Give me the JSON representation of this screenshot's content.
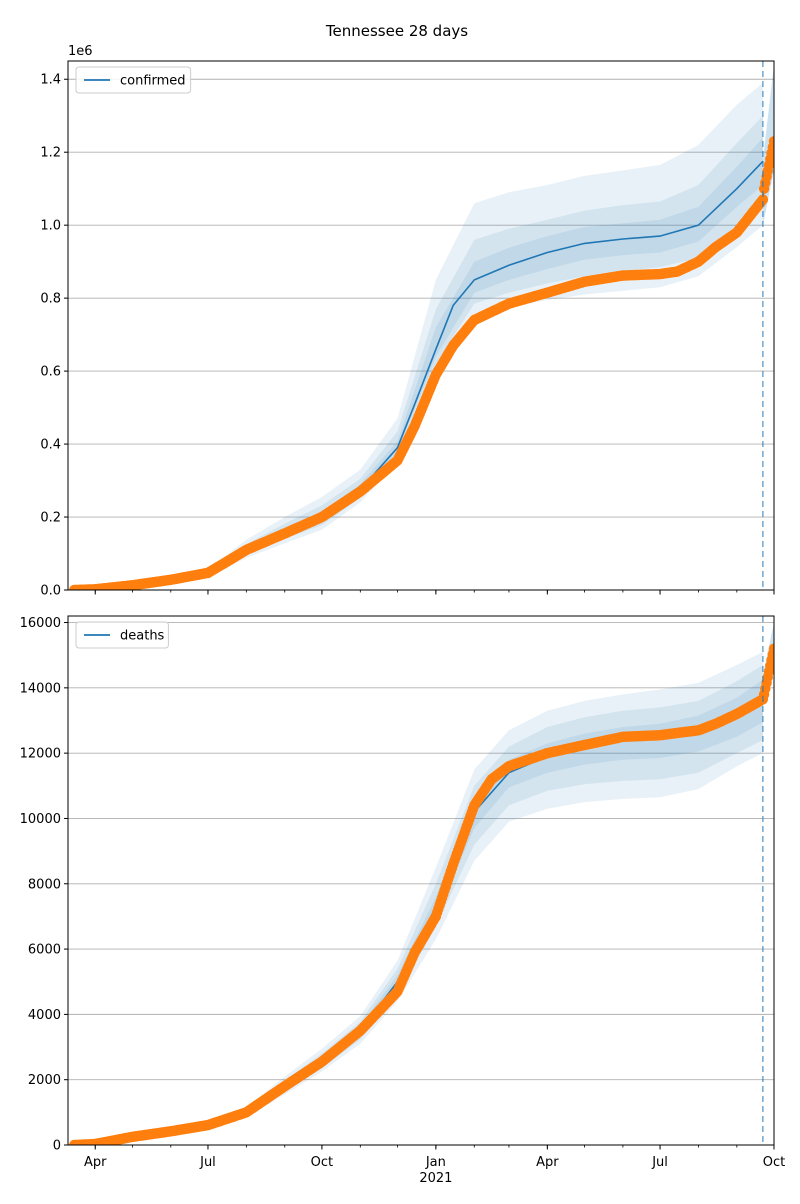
{
  "figure": {
    "title": "Tennessee 28 days"
  },
  "chart_data": [
    {
      "type": "line",
      "panel": "top",
      "ylim": [
        0,
        1450000
      ],
      "yticks": [
        0,
        200000,
        400000,
        600000,
        800000,
        1000000,
        1200000,
        1400000
      ],
      "ytick_labels": [
        "0.0",
        "0.2",
        "0.4",
        "0.6",
        "0.8",
        "1.0",
        "1.2",
        "1.4"
      ],
      "offset_label": "1e6",
      "grid": "horizontal",
      "legend": {
        "entries": [
          "confirmed"
        ],
        "placement": "upper-left"
      },
      "colors": {
        "model": "#1f77b4",
        "observed": "#ff7f0e",
        "band": "#1f77b4"
      },
      "model": {
        "name": "confirmed",
        "x": [
          "2020-03-15",
          "2020-05-01",
          "2020-06-01",
          "2020-07-01",
          "2020-08-01",
          "2020-09-01",
          "2020-10-01",
          "2020-11-01",
          "2020-12-01",
          "2020-12-15",
          "2021-01-01",
          "2021-01-15",
          "2021-02-01",
          "2021-03-01",
          "2021-04-01",
          "2021-05-01",
          "2021-06-01",
          "2021-07-01",
          "2021-08-01",
          "2021-09-01",
          "2021-09-22"
        ],
        "y": [
          0,
          10000,
          22000,
          45000,
          110000,
          160000,
          200000,
          275000,
          390000,
          510000,
          660000,
          780000,
          850000,
          890000,
          925000,
          950000,
          962000,
          970000,
          1000000,
          1100000,
          1175000
        ]
      },
      "bands": [
        {
          "x": [
            "2020-03-15",
            "2020-06-01",
            "2020-07-01",
            "2020-08-01",
            "2020-09-01",
            "2020-10-01",
            "2020-11-01",
            "2020-12-01",
            "2021-01-01",
            "2021-02-01",
            "2021-03-01",
            "2021-04-01",
            "2021-05-01",
            "2021-06-01",
            "2021-07-01",
            "2021-08-01",
            "2021-09-01",
            "2021-09-22"
          ],
          "lower": [
            0,
            20000,
            36000,
            88000,
            128000,
            165000,
            240000,
            355000,
            600000,
            750000,
            775000,
            795000,
            810000,
            820000,
            830000,
            860000,
            940000,
            1000000
          ],
          "upper": [
            0,
            24000,
            57000,
            138000,
            200000,
            255000,
            330000,
            470000,
            850000,
            1060000,
            1090000,
            1110000,
            1135000,
            1150000,
            1165000,
            1220000,
            1330000,
            1390000
          ]
        },
        {
          "x": [
            "2020-03-15",
            "2020-06-01",
            "2020-07-01",
            "2020-08-01",
            "2020-09-01",
            "2020-10-01",
            "2020-11-01",
            "2020-12-01",
            "2021-01-01",
            "2021-02-01",
            "2021-03-01",
            "2021-04-01",
            "2021-05-01",
            "2021-06-01",
            "2021-07-01",
            "2021-08-01",
            "2021-09-01",
            "2021-09-22"
          ],
          "lower": [
            0,
            21000,
            39000,
            96000,
            140000,
            178000,
            252000,
            370000,
            620000,
            785000,
            815000,
            840000,
            860000,
            875000,
            885000,
            910000,
            1000000,
            1060000
          ],
          "upper": [
            0,
            23000,
            52000,
            126000,
            182000,
            232000,
            305000,
            435000,
            770000,
            960000,
            990000,
            1015000,
            1040000,
            1055000,
            1065000,
            1110000,
            1225000,
            1300000
          ]
        },
        {
          "x": [
            "2020-03-15",
            "2020-06-01",
            "2020-07-01",
            "2020-08-01",
            "2020-09-01",
            "2020-10-01",
            "2020-11-01",
            "2020-12-01",
            "2021-01-01",
            "2021-02-01",
            "2021-03-01",
            "2021-04-01",
            "2021-05-01",
            "2021-06-01",
            "2021-07-01",
            "2021-08-01",
            "2021-09-01",
            "2021-09-22"
          ],
          "lower": [
            0,
            21500,
            41000,
            102000,
            150000,
            188000,
            262000,
            380000,
            640000,
            815000,
            850000,
            880000,
            905000,
            918000,
            925000,
            955000,
            1050000,
            1110000
          ],
          "upper": [
            0,
            22500,
            49000,
            118000,
            172000,
            214000,
            290000,
            408000,
            720000,
            900000,
            938000,
            970000,
            995000,
            1005000,
            1015000,
            1050000,
            1160000,
            1240000
          ]
        }
      ],
      "forecast": {
        "x": [
          "2021-09-22",
          "2021-10-01"
        ],
        "lower": [
          1000000,
          1150000
        ],
        "upper": [
          1180000,
          1440000
        ],
        "mid": [
          1080000,
          1200000
        ]
      },
      "observed": {
        "x": [
          "2020-03-15",
          "2020-04-01",
          "2020-05-01",
          "2020-06-01",
          "2020-07-01",
          "2020-07-15",
          "2020-08-01",
          "2020-09-01",
          "2020-10-01",
          "2020-11-01",
          "2020-12-01",
          "2020-12-15",
          "2021-01-01",
          "2021-01-15",
          "2021-02-01",
          "2021-03-01",
          "2021-04-01",
          "2021-05-01",
          "2021-06-01",
          "2021-07-01",
          "2021-07-15",
          "2021-08-01",
          "2021-08-15",
          "2021-09-01",
          "2021-09-15",
          "2021-09-22",
          "2021-09-23",
          "2021-10-01"
        ],
        "y": [
          0,
          2000,
          13000,
          28000,
          47000,
          75000,
          110000,
          155000,
          200000,
          270000,
          355000,
          450000,
          590000,
          670000,
          740000,
          785000,
          815000,
          845000,
          862000,
          866000,
          873000,
          900000,
          940000,
          980000,
          1040000,
          1070000,
          1100000,
          1230000
        ]
      },
      "markers": [
        {
          "x": "2021-09-22",
          "style": "dashed-vertical"
        }
      ]
    },
    {
      "type": "line",
      "panel": "bottom",
      "ylim": [
        0,
        16200
      ],
      "yticks": [
        0,
        2000,
        4000,
        6000,
        8000,
        10000,
        12000,
        14000,
        16000
      ],
      "ytick_labels": [
        "0",
        "2000",
        "4000",
        "6000",
        "8000",
        "10000",
        "12000",
        "14000",
        "16000"
      ],
      "grid": "horizontal",
      "legend": {
        "entries": [
          "deaths"
        ],
        "placement": "upper-left"
      },
      "colors": {
        "model": "#1f77b4",
        "observed": "#ff7f0e",
        "band": "#1f77b4"
      },
      "model": {
        "name": "deaths",
        "x": [
          "2020-03-15",
          "2020-04-01",
          "2020-05-01",
          "2020-06-01",
          "2020-07-01",
          "2020-08-01",
          "2020-09-01",
          "2020-10-01",
          "2020-11-01",
          "2020-12-01",
          "2020-12-15",
          "2021-01-01",
          "2021-01-15",
          "2021-02-01",
          "2021-03-01",
          "2021-04-01",
          "2021-05-01",
          "2021-06-01",
          "2021-07-01",
          "2021-08-01",
          "2021-09-01",
          "2021-09-22"
        ],
        "y": [
          0,
          30,
          200,
          400,
          600,
          1000,
          1800,
          2550,
          3500,
          5000,
          6000,
          7300,
          8600,
          10200,
          11400,
          11900,
          12250,
          12450,
          12550,
          12700,
          13100,
          13600
        ]
      },
      "bands": [
        {
          "x": [
            "2020-03-15",
            "2020-06-01",
            "2020-07-01",
            "2020-08-01",
            "2020-09-01",
            "2020-10-01",
            "2020-11-01",
            "2020-12-01",
            "2021-01-01",
            "2021-02-01",
            "2021-03-01",
            "2021-04-01",
            "2021-05-01",
            "2021-06-01",
            "2021-07-01",
            "2021-08-01",
            "2021-09-01",
            "2021-09-22"
          ],
          "lower": [
            0,
            370,
            540,
            860,
            1550,
            2250,
            3100,
            4400,
            6300,
            8700,
            9900,
            10300,
            10500,
            10600,
            10650,
            10900,
            11600,
            12000
          ],
          "upper": [
            0,
            430,
            670,
            1150,
            2100,
            2950,
            3950,
            5650,
            8500,
            11500,
            12700,
            13300,
            13600,
            13800,
            13950,
            14150,
            14700,
            15100
          ]
        },
        {
          "x": [
            "2020-03-15",
            "2020-06-01",
            "2020-07-01",
            "2020-08-01",
            "2020-09-01",
            "2020-10-01",
            "2020-11-01",
            "2020-12-01",
            "2021-01-01",
            "2021-02-01",
            "2021-03-01",
            "2021-04-01",
            "2021-05-01",
            "2021-06-01",
            "2021-07-01",
            "2021-08-01",
            "2021-09-01",
            "2021-09-22"
          ],
          "lower": [
            0,
            380,
            560,
            900,
            1630,
            2350,
            3230,
            4620,
            6700,
            9200,
            10400,
            10850,
            11050,
            11150,
            11200,
            11400,
            12000,
            12400
          ],
          "upper": [
            0,
            420,
            640,
            1100,
            1980,
            2800,
            3780,
            5400,
            8000,
            11000,
            12200,
            12800,
            13100,
            13300,
            13400,
            13600,
            14200,
            14700
          ]
        },
        {
          "x": [
            "2020-03-15",
            "2020-06-01",
            "2020-07-01",
            "2020-08-01",
            "2020-09-01",
            "2020-10-01",
            "2020-11-01",
            "2020-12-01",
            "2021-01-01",
            "2021-02-01",
            "2021-03-01",
            "2021-04-01",
            "2021-05-01",
            "2021-06-01",
            "2021-07-01",
            "2021-08-01",
            "2021-09-01",
            "2021-09-22"
          ],
          "lower": [
            0,
            390,
            580,
            950,
            1700,
            2450,
            3350,
            4800,
            7000,
            9700,
            10950,
            11400,
            11650,
            11800,
            11850,
            12050,
            12500,
            12950
          ],
          "upper": [
            0,
            410,
            620,
            1050,
            1900,
            2650,
            3650,
            5200,
            7600,
            10600,
            11800,
            12300,
            12600,
            12800,
            12900,
            13150,
            13700,
            14250
          ]
        }
      ],
      "forecast": {
        "x": [
          "2021-09-22",
          "2021-10-01"
        ],
        "lower": [
          13600,
          14800
        ],
        "upper": [
          14400,
          16000
        ],
        "mid": [
          13900,
          15200
        ]
      },
      "observed": {
        "x": [
          "2020-03-15",
          "2020-04-01",
          "2020-05-01",
          "2020-06-01",
          "2020-07-01",
          "2020-08-01",
          "2020-09-01",
          "2020-10-01",
          "2020-11-01",
          "2020-12-01",
          "2020-12-15",
          "2021-01-01",
          "2021-01-15",
          "2021-02-01",
          "2021-02-15",
          "2021-03-01",
          "2021-04-01",
          "2021-05-01",
          "2021-06-01",
          "2021-07-01",
          "2021-07-15",
          "2021-08-01",
          "2021-08-15",
          "2021-09-01",
          "2021-09-22",
          "2021-09-23",
          "2021-10-01"
        ],
        "y": [
          0,
          30,
          250,
          420,
          610,
          1000,
          1800,
          2550,
          3500,
          4700,
          5900,
          7000,
          8600,
          10400,
          11200,
          11600,
          12000,
          12250,
          12500,
          12550,
          12620,
          12700,
          12900,
          13200,
          13650,
          13800,
          15200
        ]
      },
      "markers": [
        {
          "x": "2021-09-22",
          "style": "dashed-vertical"
        }
      ]
    }
  ],
  "x_axis": {
    "xlim": [
      "2020-03-10",
      "2021-10-01"
    ],
    "major_ticks": [
      "2020-04-01",
      "2020-07-01",
      "2020-10-01",
      "2021-01-01",
      "2021-04-01",
      "2021-07-01",
      "2021-10-01"
    ],
    "major_labels": [
      "Apr",
      "Jul",
      "Oct",
      "Jan",
      "Apr",
      "Jul",
      "Oct"
    ],
    "year_label": "2021",
    "minor_ticks": [
      "2020-04-01",
      "2020-05-01",
      "2020-06-01",
      "2020-07-01",
      "2020-08-01",
      "2020-09-01",
      "2020-10-01",
      "2020-11-01",
      "2020-12-01",
      "2021-01-01",
      "2021-02-01",
      "2021-03-01",
      "2021-04-01",
      "2021-05-01",
      "2021-06-01",
      "2021-07-01",
      "2021-08-01",
      "2021-09-01",
      "2021-10-01"
    ]
  }
}
